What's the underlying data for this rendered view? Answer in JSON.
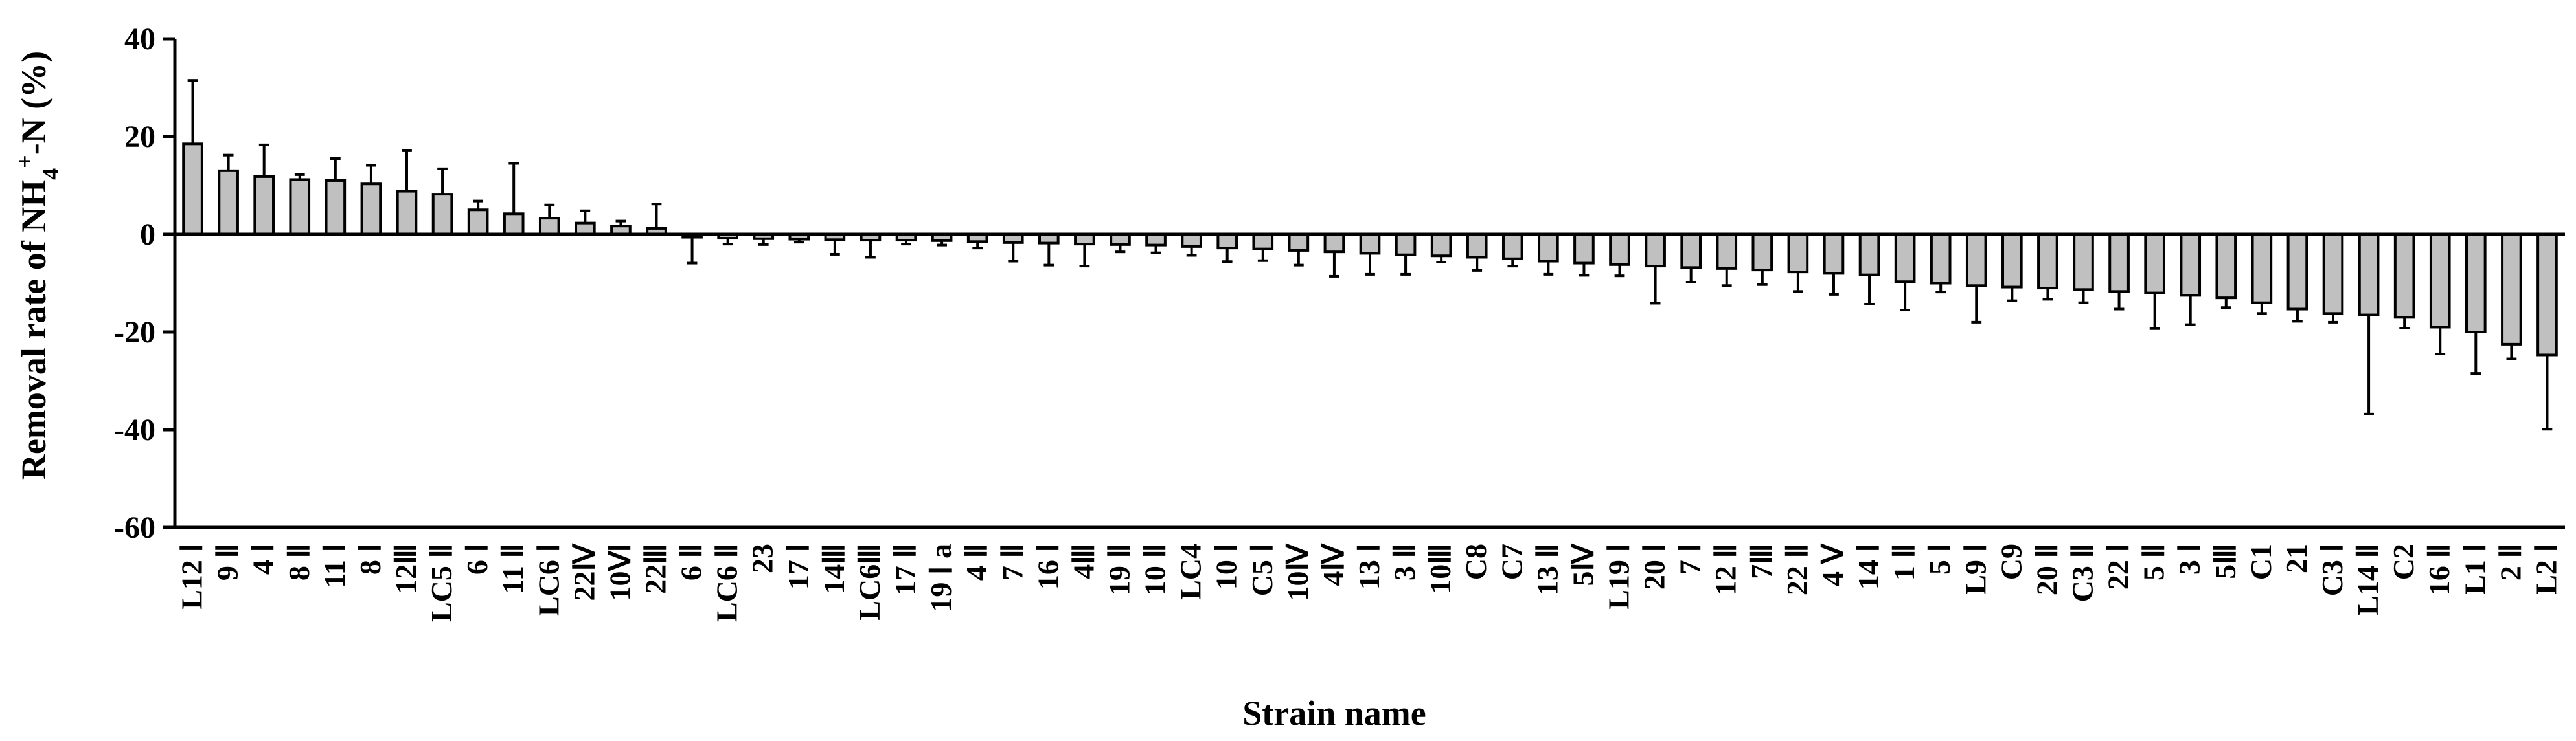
{
  "chart_data": {
    "type": "bar",
    "title": "",
    "xlabel": "Strain name",
    "ylabel": "Removal rate of NH",
    "ylabel_sub": "4",
    "ylabel_sup": "+",
    "ylabel_tail": "-N (%)",
    "ylim": [
      -60,
      40
    ],
    "yticks": [
      40,
      20,
      0,
      -20,
      -40,
      -60
    ],
    "grid": false,
    "legend": "none",
    "bar_color": "#c0c0c0",
    "categories": [
      "L12 Ⅰ",
      "9 Ⅱ",
      "4 Ⅰ",
      "8 Ⅱ",
      "11 Ⅰ",
      "8 Ⅰ",
      "12Ⅲ",
      "LC5 Ⅱ",
      "6 Ⅰ",
      "11 Ⅱ",
      "LC6 Ⅰ",
      "22Ⅳ",
      "10Ⅵ",
      "22Ⅲ",
      "6 Ⅱ",
      "LC6 Ⅱ",
      "23",
      "17 Ⅰ",
      "14Ⅲ",
      "LC6Ⅲ",
      "17 Ⅱ",
      "19 Ⅰ a",
      "4 Ⅱ",
      "7 Ⅱ",
      "16 Ⅰ",
      "4Ⅲ",
      "19 Ⅱ",
      "10 Ⅱ",
      "LC4",
      "10 Ⅰ",
      "C5 Ⅰ",
      "10Ⅳ",
      "4Ⅳ",
      "13 Ⅰ",
      "3 Ⅱ",
      "10Ⅲ",
      "C8",
      "C7",
      "13 Ⅱ",
      "5Ⅳ",
      "L19 Ⅰ",
      "20 Ⅰ",
      "7 Ⅰ",
      "12 Ⅱ",
      "7Ⅲ",
      "22 Ⅱ",
      "4 Ⅴ",
      "14 Ⅰ",
      "1 Ⅱ",
      "5 Ⅰ",
      "L9 Ⅰ",
      "C9",
      "20 Ⅱ",
      "C3 Ⅱ",
      "22 Ⅰ",
      "5 Ⅱ",
      "3 Ⅰ",
      "5Ⅲ",
      "C1",
      "21",
      "C3 Ⅰ",
      "L14 Ⅱ",
      "C2",
      "16 Ⅱ",
      "L1 Ⅰ",
      "2 Ⅱ",
      "L2 Ⅰ"
    ],
    "series": [
      {
        "values": [
          18.5,
          13,
          11.8,
          11.2,
          11,
          10.3,
          8.8,
          8.2,
          5,
          4.2,
          3.3,
          2.3,
          1.7,
          1.2,
          -0.6,
          -0.8,
          -0.9,
          -1,
          -1.1,
          -1.2,
          -1.2,
          -1.3,
          -1.5,
          -1.7,
          -1.8,
          -2,
          -2.1,
          -2.2,
          -2.5,
          -2.8,
          -3,
          -3.3,
          -3.6,
          -3.9,
          -4.2,
          -4.4,
          -4.7,
          -5,
          -5.5,
          -5.9,
          -6.2,
          -6.5,
          -6.8,
          -7,
          -7.3,
          -7.7,
          -8,
          -8.3,
          -9.7,
          -10,
          -10.5,
          -10.8,
          -11,
          -11.3,
          -11.7,
          -12,
          -12.5,
          -13,
          -14,
          -15.3,
          -16.2,
          -16.5,
          -17,
          -19,
          -20,
          -22.5,
          -24.7
        ],
        "errors": [
          13,
          3.2,
          6.5,
          1,
          4.5,
          3.8,
          8.3,
          5.2,
          1.8,
          10.3,
          2.7,
          2.5,
          1,
          5,
          5.3,
          1.2,
          1.2,
          0.6,
          3,
          3.5,
          0.8,
          0.9,
          1.3,
          3.8,
          4.5,
          4.5,
          1.5,
          1.6,
          1.8,
          2.8,
          2.4,
          3,
          5,
          4.3,
          4,
          1.3,
          2.7,
          1.5,
          2.7,
          2.5,
          2.3,
          7.6,
          3,
          3.5,
          3,
          4,
          4.3,
          6,
          5.8,
          1.8,
          7.5,
          2.8,
          2.3,
          2.7,
          3.6,
          7.3,
          6,
          2,
          2.2,
          2.5,
          1.8,
          20.3,
          2.2,
          5.5,
          8.5,
          3,
          15.2
        ]
      }
    ]
  }
}
